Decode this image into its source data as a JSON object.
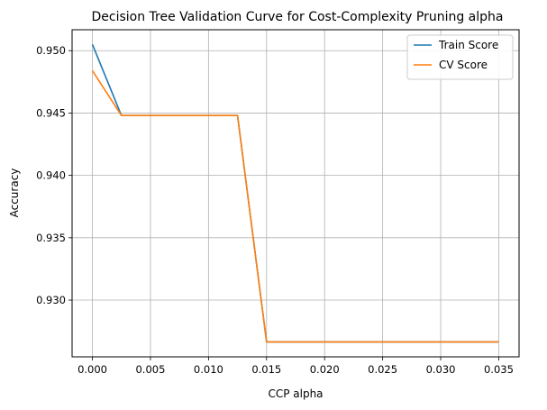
{
  "chart_data": {
    "type": "line",
    "title": "Decision Tree Validation Curve for Cost-Complexity Pruning alpha",
    "xlabel": "CCP alpha",
    "ylabel": "Accuracy",
    "xlim": [
      -0.00175,
      0.03675
    ],
    "ylim": [
      0.92545,
      0.95168
    ],
    "grid": true,
    "legend_position": "top-right",
    "x_ticks": [
      "0.000",
      "0.005",
      "0.010",
      "0.015",
      "0.020",
      "0.025",
      "0.030",
      "0.035"
    ],
    "y_ticks": [
      "0.930",
      "0.935",
      "0.940",
      "0.945",
      "0.950"
    ],
    "x": [
      0.0,
      0.0025,
      0.0125,
      0.015,
      0.035
    ],
    "series": [
      {
        "name": "Train Score",
        "color": "#1f77b4",
        "values": [
          0.9505,
          0.9448,
          0.9448,
          0.92665,
          0.92665
        ]
      },
      {
        "name": "CV Score",
        "color": "#ff7f0e",
        "values": [
          0.9484,
          0.9448,
          0.9448,
          0.92665,
          0.92665
        ]
      }
    ]
  }
}
